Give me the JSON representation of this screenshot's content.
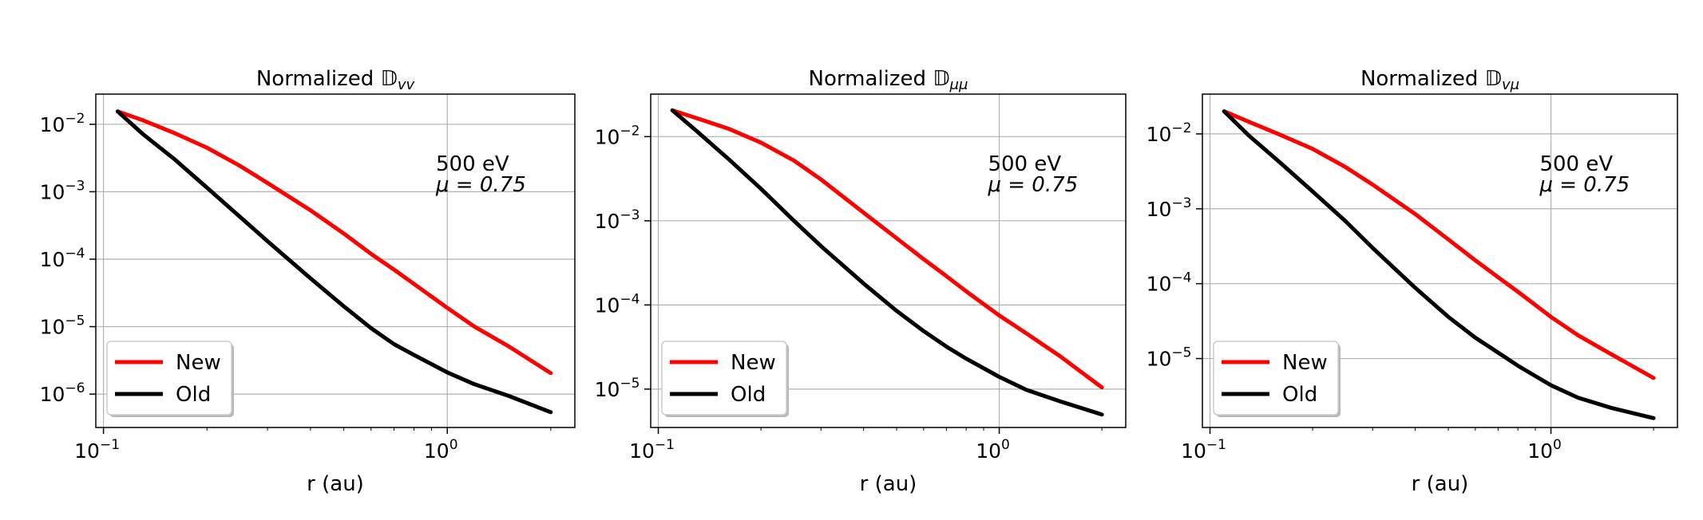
{
  "chart_data": [
    {
      "type": "line",
      "title": "Normalized 𝔻",
      "title_sub": "vv",
      "xlabel": "r (au)",
      "ylabel": "",
      "xscale": "log",
      "yscale": "log",
      "xlim": [
        0.095,
        2.35
      ],
      "ylim": [
        3.2e-07,
        0.028
      ],
      "x_ticks": [
        {
          "value": 0.1,
          "label": "10",
          "exp": "−1"
        },
        {
          "value": 1,
          "label": "10",
          "exp": "0"
        }
      ],
      "y_ticks": [
        {
          "value": 1e-06,
          "label": "10",
          "exp": "−6"
        },
        {
          "value": 1e-05,
          "label": "10",
          "exp": "−5"
        },
        {
          "value": 0.0001,
          "label": "10",
          "exp": "−4"
        },
        {
          "value": 0.001,
          "label": "10",
          "exp": "−3"
        },
        {
          "value": 0.01,
          "label": "10",
          "exp": "−2"
        }
      ],
      "grid": true,
      "legend_position": "lower-left",
      "annotation": {
        "line1": "500 eV",
        "line2": "μ = 0.75"
      },
      "series": [
        {
          "name": "New",
          "color": "#ff0000",
          "x": [
            0.11,
            0.13,
            0.16,
            0.2,
            0.25,
            0.3,
            0.4,
            0.5,
            0.6,
            0.7,
            0.8,
            1.0,
            1.2,
            1.5,
            2.0
          ],
          "y": [
            0.0155,
            0.0115,
            0.0075,
            0.0045,
            0.0024,
            0.00135,
            0.00053,
            0.00024,
            0.00012,
            7e-05,
            4.3e-05,
            1.9e-05,
            1e-05,
            5.2e-06,
            2.05e-06
          ]
        },
        {
          "name": "Old",
          "color": "#000000",
          "x": [
            0.11,
            0.13,
            0.16,
            0.2,
            0.25,
            0.3,
            0.4,
            0.5,
            0.6,
            0.7,
            0.8,
            1.0,
            1.2,
            1.5,
            2.0
          ],
          "y": [
            0.0155,
            0.0072,
            0.0031,
            0.00115,
            0.00042,
            0.000185,
            5.2e-05,
            2e-05,
            9.5e-06,
            5.5e-06,
            3.8e-06,
            2.1e-06,
            1.4e-06,
            9.5e-07,
            5.4e-07
          ]
        }
      ]
    },
    {
      "type": "line",
      "title": "Normalized 𝔻",
      "title_sub": "μμ",
      "xlabel": "r (au)",
      "ylabel": "",
      "xscale": "log",
      "yscale": "log",
      "xlim": [
        0.095,
        2.35
      ],
      "ylim": [
        3.5e-06,
        0.032
      ],
      "x_ticks": [
        {
          "value": 0.1,
          "label": "10",
          "exp": "−1"
        },
        {
          "value": 1,
          "label": "10",
          "exp": "0"
        }
      ],
      "y_ticks": [
        {
          "value": 1e-05,
          "label": "10",
          "exp": "−5"
        },
        {
          "value": 0.0001,
          "label": "10",
          "exp": "−4"
        },
        {
          "value": 0.001,
          "label": "10",
          "exp": "−3"
        },
        {
          "value": 0.01,
          "label": "10",
          "exp": "−2"
        }
      ],
      "grid": true,
      "legend_position": "lower-left",
      "annotation": {
        "line1": "500 eV",
        "line2": "μ = 0.75"
      },
      "series": [
        {
          "name": "New",
          "color": "#ff0000",
          "x": [
            0.11,
            0.13,
            0.16,
            0.2,
            0.25,
            0.3,
            0.4,
            0.5,
            0.6,
            0.7,
            0.8,
            1.0,
            1.2,
            1.5,
            2.0
          ],
          "y": [
            0.0205,
            0.0165,
            0.0125,
            0.0085,
            0.0052,
            0.0031,
            0.00125,
            0.00062,
            0.00035,
            0.00022,
            0.000145,
            7.5e-05,
            4.6e-05,
            2.5e-05,
            1.05e-05
          ]
        },
        {
          "name": "Old",
          "color": "#000000",
          "x": [
            0.11,
            0.13,
            0.16,
            0.2,
            0.25,
            0.3,
            0.4,
            0.5,
            0.6,
            0.7,
            0.8,
            1.0,
            1.2,
            1.5,
            2.0
          ],
          "y": [
            0.0205,
            0.0115,
            0.0055,
            0.0024,
            0.001,
            0.0005,
            0.00018,
            8.5e-05,
            4.9e-05,
            3.2e-05,
            2.3e-05,
            1.4e-05,
            9.8e-06,
            7.2e-06,
            5e-06
          ]
        }
      ]
    },
    {
      "type": "line",
      "title": "Normalized 𝔻",
      "title_sub": "vμ",
      "xlabel": "r (au)",
      "ylabel": "",
      "xscale": "log",
      "yscale": "log",
      "xlim": [
        0.095,
        2.35
      ],
      "ylim": [
        1.2e-06,
        0.034
      ],
      "x_ticks": [
        {
          "value": 0.1,
          "label": "10",
          "exp": "−1"
        },
        {
          "value": 1,
          "label": "10",
          "exp": "0"
        }
      ],
      "y_ticks": [
        {
          "value": 1e-05,
          "label": "10",
          "exp": "−5"
        },
        {
          "value": 0.0001,
          "label": "10",
          "exp": "−4"
        },
        {
          "value": 0.001,
          "label": "10",
          "exp": "−3"
        },
        {
          "value": 0.01,
          "label": "10",
          "exp": "−2"
        }
      ],
      "grid": true,
      "legend_position": "lower-left",
      "annotation": {
        "line1": "500 eV",
        "line2": "μ = 0.75"
      },
      "series": [
        {
          "name": "New",
          "color": "#ff0000",
          "x": [
            0.11,
            0.13,
            0.16,
            0.2,
            0.25,
            0.3,
            0.4,
            0.5,
            0.6,
            0.7,
            0.8,
            1.0,
            1.2,
            1.5,
            2.0
          ],
          "y": [
            0.02,
            0.0145,
            0.0098,
            0.0063,
            0.0036,
            0.0021,
            0.00085,
            0.00039,
            0.000205,
            0.000122,
            7.8e-05,
            3.6e-05,
            2.05e-05,
            1.15e-05,
            5.5e-06
          ]
        },
        {
          "name": "Old",
          "color": "#000000",
          "x": [
            0.11,
            0.13,
            0.16,
            0.2,
            0.25,
            0.3,
            0.4,
            0.5,
            0.6,
            0.7,
            0.8,
            1.0,
            1.2,
            1.5,
            2.0
          ],
          "y": [
            0.02,
            0.0095,
            0.0042,
            0.0017,
            0.00068,
            0.0003,
            8.8e-05,
            3.6e-05,
            1.9e-05,
            1.2e-05,
            8e-06,
            4.4e-06,
            3e-06,
            2.2e-06,
            1.6e-06
          ]
        }
      ]
    }
  ]
}
